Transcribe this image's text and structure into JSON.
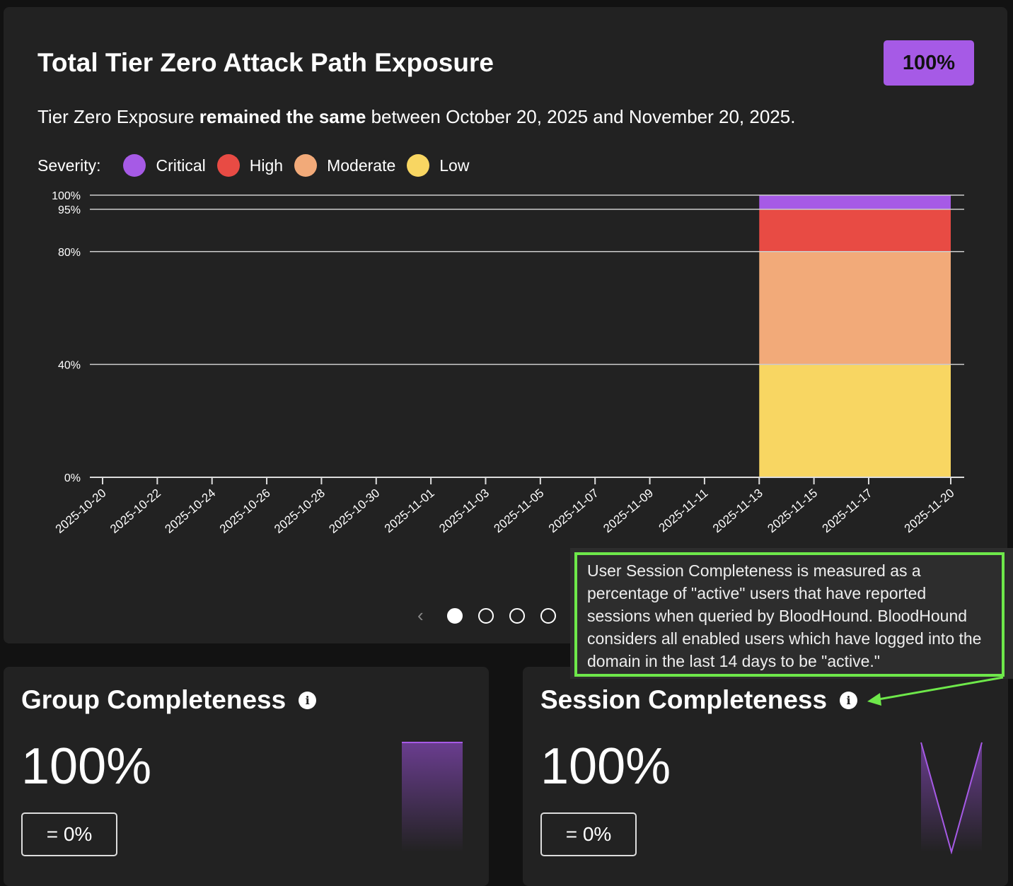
{
  "exposure": {
    "title": "Total Tier Zero Attack Path Exposure",
    "badge": "100%",
    "summary_prefix": "Tier Zero Exposure ",
    "summary_bold": "remained the same",
    "summary_suffix": " between October 20, 2025 and November 20, 2025.",
    "severity_label": "Severity:",
    "legend": [
      {
        "label": "Critical",
        "color": "#a65ae6"
      },
      {
        "label": "High",
        "color": "#e84b44"
      },
      {
        "label": "Moderate",
        "color": "#f2aa79"
      },
      {
        "label": "Low",
        "color": "#f8d662"
      }
    ]
  },
  "chart_data": {
    "type": "bar",
    "stacked": true,
    "x_ticks": [
      "2025-10-20",
      "2025-10-22",
      "2025-10-24",
      "2025-10-26",
      "2025-10-28",
      "2025-10-30",
      "2025-11-01",
      "2025-11-03",
      "2025-11-05",
      "2025-11-07",
      "2025-11-09",
      "2025-11-11",
      "2025-11-13",
      "2025-11-15",
      "2025-11-17",
      "2025-11-20"
    ],
    "x_range": [
      "2025-10-20",
      "2025-11-20"
    ],
    "y_ticks": [
      "0%",
      "40%",
      "80%",
      "95%",
      "100%"
    ],
    "y_tick_values": [
      0,
      40,
      80,
      95,
      100
    ],
    "ylim": [
      0,
      100
    ],
    "bars": [
      {
        "start": "2025-11-13",
        "end": "2025-11-20",
        "segments": [
          {
            "name": "Low",
            "value": 40,
            "color": "#f8d662"
          },
          {
            "name": "Moderate",
            "value": 40,
            "color": "#f2aa79"
          },
          {
            "name": "High",
            "value": 15,
            "color": "#e84b44"
          },
          {
            "name": "Critical",
            "value": 5,
            "color": "#a65ae6"
          }
        ]
      }
    ]
  },
  "pager": {
    "prev_icon": "‹",
    "active_index": 0
  },
  "group": {
    "title": "Group Completeness",
    "value": "100%",
    "delta": "=  0%",
    "sparkline": [
      100,
      100
    ]
  },
  "session": {
    "title": "Session Completeness",
    "value": "100%",
    "delta": "=  0%",
    "sparkline": [
      100,
      0,
      100
    ]
  },
  "tooltip": {
    "text": "User Session Completeness is measured as a percentage of \"active\" users that have reported sessions when queried by BloodHound. BloodHound considers all enabled users which have logged into the domain in the last 14 days to be \"active.\""
  }
}
